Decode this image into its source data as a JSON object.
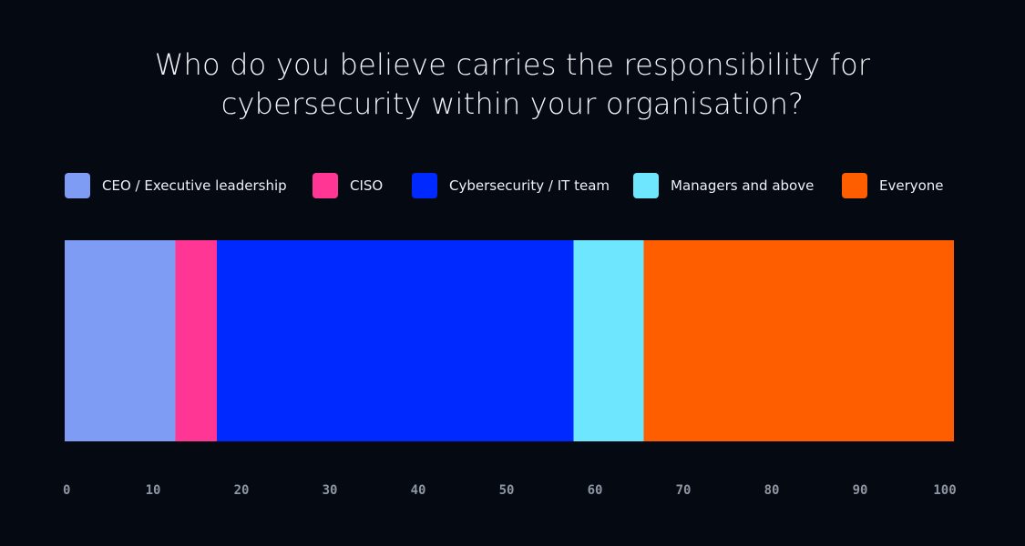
{
  "chart_data": {
    "type": "bar",
    "orientation": "horizontal",
    "stacked": true,
    "title_lines": [
      "Who do you believe carries the responsibility for",
      "cybersecurity within your organisation?"
    ],
    "categories": [
      ""
    ],
    "series": [
      {
        "name": "CEO / Executive leadership",
        "values": [
          12.5
        ],
        "color": "#7f9cf5"
      },
      {
        "name": "CISO",
        "values": [
          4.7
        ],
        "color": "#ff3694"
      },
      {
        "name": "Cybersecurity / IT team",
        "values": [
          40.4
        ],
        "color": "#0029ff"
      },
      {
        "name": "Managers and above",
        "values": [
          7.9
        ],
        "color": "#6ee6fd"
      },
      {
        "name": "Everyone",
        "values": [
          35.1
        ],
        "color": "#ff5e00"
      }
    ],
    "xlim": [
      0,
      100
    ],
    "xticks": [
      0,
      10,
      20,
      30,
      40,
      50,
      60,
      70,
      80,
      90,
      100
    ],
    "grid": false,
    "legend_position": "top"
  }
}
